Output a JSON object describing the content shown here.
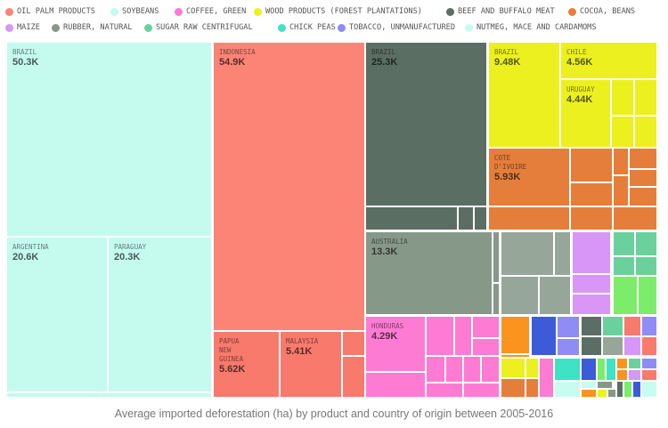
{
  "chart_data": {
    "type": "treemap",
    "caption": "Average imported deforestation (ha) by product and country of origin between 2005-2016",
    "legend": [
      {
        "name": "OIL PALM PRODUCTS",
        "color": "#fb8477"
      },
      {
        "name": "SOYBEANS",
        "color": "#c4fbee"
      },
      {
        "name": "COFFEE, GREEN",
        "color": "#fd7bd3"
      },
      {
        "name": "WOOD PRODUCTS (FOREST PLANTATIONS)",
        "color": "#ecf01e"
      },
      {
        "name": "BEEF AND BUFFALO MEAT",
        "color": "#5b6e64"
      },
      {
        "name": "COCOA, BEANS",
        "color": "#e57e3b"
      },
      {
        "name": "MAIZE",
        "color": "#d896f6"
      },
      {
        "name": "RUBBER, NATURAL",
        "color": "#869888"
      },
      {
        "name": "SUGAR RAW CENTRIFUGAL",
        "color": "#6ad19c"
      },
      {
        "name": "CHICK PEAS",
        "color": "#40e2c5"
      },
      {
        "name": "TOBACCO, UNMANUFACTURED",
        "color": "#8f8cf5"
      },
      {
        "name": "NUTMEG, MACE AND CARDAMOMS",
        "color": "#c8fcf0"
      }
    ],
    "legend_placement": "top",
    "tiles": [
      {
        "product": "SOYBEANS",
        "country": "BRAZIL",
        "label": "50.3K",
        "value": 50300
      },
      {
        "product": "SOYBEANS",
        "country": "ARGENTINA",
        "label": "20.6K",
        "value": 20600
      },
      {
        "product": "SOYBEANS",
        "country": "PARAGUAY",
        "label": "20.3K",
        "value": 20300
      },
      {
        "product": "OIL PALM PRODUCTS",
        "country": "INDONESIA",
        "label": "54.9K",
        "value": 54900
      },
      {
        "product": "OIL PALM PRODUCTS",
        "country": "PAPUA\nNEW\nGUINEA",
        "label": "5.62K",
        "value": 5620
      },
      {
        "product": "OIL PALM PRODUCTS",
        "country": "MALAYSIA",
        "label": "5.41K",
        "value": 5410
      },
      {
        "product": "BEEF AND BUFFALO MEAT",
        "country": "BRAZIL",
        "label": "25.3K",
        "value": 25300
      },
      {
        "product": "WOOD PRODUCTS (FOREST PLANTATIONS)",
        "country": "BRAZIL",
        "label": "9.48K",
        "value": 9480
      },
      {
        "product": "WOOD PRODUCTS (FOREST PLANTATIONS)",
        "country": "CHILE",
        "label": "4.56K",
        "value": 4560
      },
      {
        "product": "WOOD PRODUCTS (FOREST PLANTATIONS)",
        "country": "URUGUAY",
        "label": "4.44K",
        "value": 4440
      },
      {
        "product": "COCOA, BEANS",
        "country": "COTE\nD'IVOIRE",
        "label": "5.93K",
        "value": 5930
      },
      {
        "product": "RUBBER, NATURAL",
        "country": "AUSTRALIA",
        "label": "13.3K",
        "value": 13300
      },
      {
        "product": "COFFEE, GREEN",
        "country": "HONDURAS",
        "label": "4.29K",
        "value": 4290
      }
    ]
  }
}
